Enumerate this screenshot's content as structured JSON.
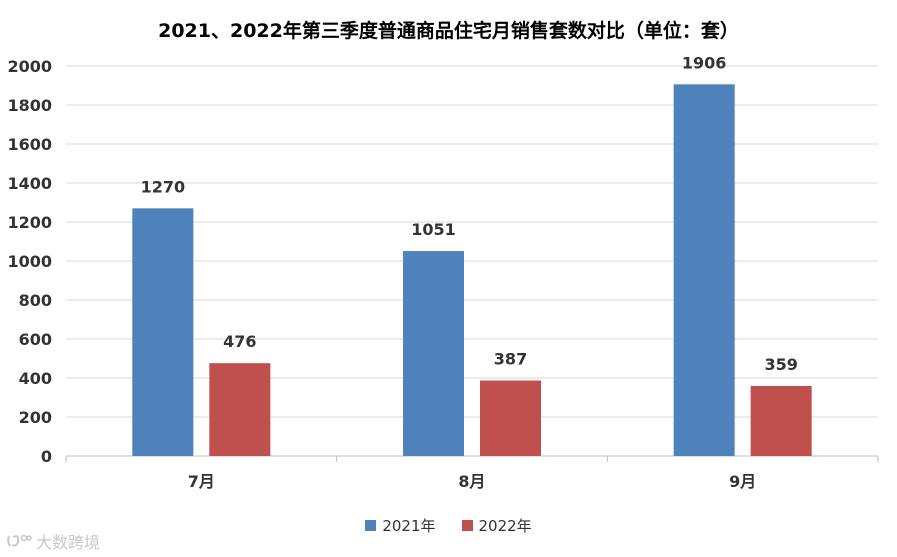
{
  "chart_data": {
    "type": "bar",
    "title": "2021、2022年第三季度普通商品住宅月销售套数对比（单位：套）",
    "categories": [
      "7月",
      "8月",
      "9月"
    ],
    "series": [
      {
        "name": "2021年",
        "values": [
          1270,
          1051,
          1906
        ],
        "color": "#4f81bd"
      },
      {
        "name": "2022年",
        "values": [
          476,
          387,
          359
        ],
        "color": "#c0504d"
      }
    ],
    "ylim": [
      0,
      2000
    ],
    "yticks": [
      0,
      200,
      400,
      600,
      800,
      1000,
      1200,
      1400,
      1600,
      1800,
      2000
    ],
    "grid": true,
    "legend": "bottom",
    "xlabel": "",
    "ylabel": ""
  },
  "watermark": {
    "text": "大数跨境"
  }
}
